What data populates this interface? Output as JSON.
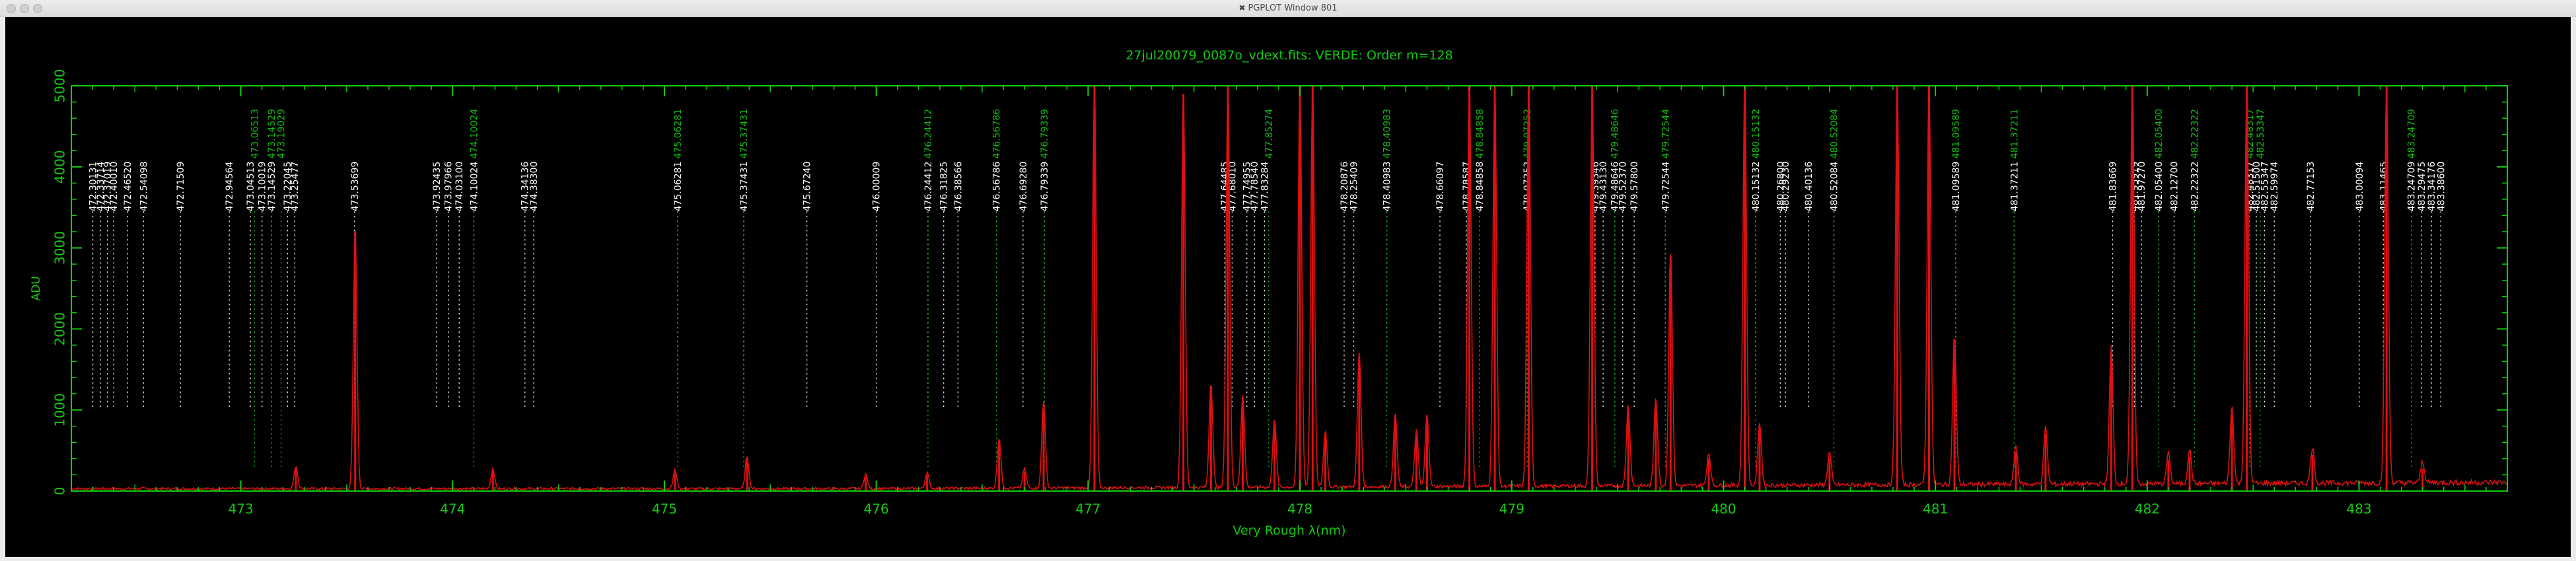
{
  "window": {
    "title": "PGPLOT Window 801",
    "icon": "x11-icon"
  },
  "colors": {
    "plot_green": "#11bb11",
    "spectrum_red": "#dd1111",
    "axis_green": "#11cc11",
    "background": "#000000",
    "label_white": "#ffffff"
  },
  "chart_data": {
    "type": "line",
    "title": "27jul20079_0087o_vdext.fits: VERDE: Order m=128",
    "xlabel": "Very Rough λ(nm)",
    "ylabel": "ADU",
    "xlim": [
      472.2,
      483.7
    ],
    "ylim": [
      0,
      5000
    ],
    "xticks": [
      473,
      474,
      475,
      476,
      477,
      478,
      479,
      480,
      481,
      482,
      483
    ],
    "yticks": [
      0,
      1000,
      2000,
      3000,
      4000,
      5000
    ],
    "grid": false,
    "series": [
      {
        "peaks": [
          [
            473.26,
            280
          ],
          [
            473.54,
            3200
          ],
          [
            474.19,
            250
          ],
          [
            475.05,
            230
          ],
          [
            475.39,
            400
          ],
          [
            475.95,
            180
          ],
          [
            476.24,
            200
          ],
          [
            476.58,
            620
          ],
          [
            476.7,
            240
          ],
          [
            476.79,
            1080
          ],
          [
            477.03,
            5000
          ],
          [
            477.45,
            4900
          ],
          [
            477.58,
            1300
          ],
          [
            477.66,
            5000
          ],
          [
            477.73,
            1150
          ],
          [
            477.88,
            850
          ],
          [
            478.0,
            5000
          ],
          [
            478.06,
            5000
          ],
          [
            478.12,
            700
          ],
          [
            478.28,
            1650
          ],
          [
            478.45,
            900
          ],
          [
            478.55,
            700
          ],
          [
            478.6,
            900
          ],
          [
            478.8,
            5000
          ],
          [
            478.92,
            5000
          ],
          [
            479.08,
            5000
          ],
          [
            479.38,
            5000
          ],
          [
            479.55,
            1000
          ],
          [
            479.68,
            1100
          ],
          [
            479.75,
            2900
          ],
          [
            479.93,
            400
          ],
          [
            480.1,
            5000
          ],
          [
            480.17,
            780
          ],
          [
            480.5,
            400
          ],
          [
            480.82,
            5000
          ],
          [
            480.97,
            5000
          ],
          [
            481.09,
            1850
          ],
          [
            481.38,
            480
          ],
          [
            481.52,
            700
          ],
          [
            481.83,
            1700
          ],
          [
            481.93,
            5000
          ],
          [
            482.1,
            380
          ],
          [
            482.2,
            420
          ],
          [
            482.4,
            950
          ],
          [
            482.47,
            5000
          ],
          [
            482.78,
            450
          ],
          [
            483.13,
            5000
          ],
          [
            483.3,
            270
          ]
        ]
      }
    ],
    "line_markers_white": [
      {
        "x": 472.30131,
        "label": "472.30131"
      },
      {
        "x": 472.33714,
        "label": "472.33714"
      },
      {
        "x": 472.37019,
        "label": "472.37019"
      },
      {
        "x": 472.4001,
        "label": "472.40010"
      },
      {
        "x": 472.4652,
        "label": "472.46520"
      },
      {
        "x": 472.54098,
        "label": "472.54098"
      },
      {
        "x": 472.71509,
        "label": "472.71509"
      },
      {
        "x": 472.94564,
        "label": "472.94564"
      },
      {
        "x": 473.04513,
        "label": "473.04513"
      },
      {
        "x": 473.10019,
        "label": "473.10019"
      },
      {
        "x": 473.14529,
        "label": "473.14529"
      },
      {
        "x": 473.22045,
        "label": "473.22045"
      },
      {
        "x": 473.25477,
        "label": "473.25477"
      },
      {
        "x": 473.53699,
        "label": "473.53699"
      },
      {
        "x": 473.92435,
        "label": "473.92435"
      },
      {
        "x": 473.97966,
        "label": "473.97966"
      },
      {
        "x": 474.031,
        "label": "474.03100"
      },
      {
        "x": 474.10024,
        "label": "474.10024"
      },
      {
        "x": 474.34136,
        "label": "474.34136"
      },
      {
        "x": 474.383,
        "label": "474.38300"
      },
      {
        "x": 475.06281,
        "label": "475.06281"
      },
      {
        "x": 475.37431,
        "label": "475.37431"
      },
      {
        "x": 475.6724,
        "label": "475.67240"
      },
      {
        "x": 476.00009,
        "label": "476.00009"
      },
      {
        "x": 476.24412,
        "label": "476.24412"
      },
      {
        "x": 476.31825,
        "label": "476.31825"
      },
      {
        "x": 476.38566,
        "label": "476.38566"
      },
      {
        "x": 476.56786,
        "label": "476.56786"
      },
      {
        "x": 476.6928,
        "label": "476.69280"
      },
      {
        "x": 476.79339,
        "label": "476.79339"
      },
      {
        "x": 477.64485,
        "label": "477.64485"
      },
      {
        "x": 477.6801,
        "label": "477.68010"
      },
      {
        "x": 477.74955,
        "label": "477.74955"
      },
      {
        "x": 477.7854,
        "label": "477.78540"
      },
      {
        "x": 477.83284,
        "label": "477.83284"
      },
      {
        "x": 478.20876,
        "label": "478.20876"
      },
      {
        "x": 478.25409,
        "label": "478.25409"
      },
      {
        "x": 478.40983,
        "label": "478.40983"
      },
      {
        "x": 478.66097,
        "label": "478.66097"
      },
      {
        "x": 478.78587,
        "label": "478.78587"
      },
      {
        "x": 478.84858,
        "label": "478.84858"
      },
      {
        "x": 479.07252,
        "label": "479.07252"
      },
      {
        "x": 479.39346,
        "label": "479.39346"
      },
      {
        "x": 479.4313,
        "label": "479.43130"
      },
      {
        "x": 479.48646,
        "label": "479.48646"
      },
      {
        "x": 479.5237,
        "label": "479.52370"
      },
      {
        "x": 479.578,
        "label": "479.57800"
      },
      {
        "x": 479.72544,
        "label": "479.72544"
      },
      {
        "x": 480.15132,
        "label": "480.15132"
      },
      {
        "x": 480.268,
        "label": "480.26800"
      },
      {
        "x": 480.2923,
        "label": "480.29230"
      },
      {
        "x": 480.40136,
        "label": "480.40136"
      },
      {
        "x": 480.52084,
        "label": "480.52084"
      },
      {
        "x": 481.09589,
        "label": "481.09589"
      },
      {
        "x": 481.37211,
        "label": "481.37211"
      },
      {
        "x": 481.83669,
        "label": "481.83669"
      },
      {
        "x": 481.93919,
        "label": "481.93919"
      },
      {
        "x": 481.9727,
        "label": "481.97270"
      },
      {
        "x": 482.054,
        "label": "482.05400"
      },
      {
        "x": 482.127,
        "label": "482.12700"
      },
      {
        "x": 482.22322,
        "label": "482.22322"
      },
      {
        "x": 482.48317,
        "label": "482.48317"
      },
      {
        "x": 482.515,
        "label": "482.51500"
      },
      {
        "x": 482.55347,
        "label": "482.55347"
      },
      {
        "x": 482.59974,
        "label": "482.59974"
      },
      {
        "x": 482.77153,
        "label": "482.77153"
      },
      {
        "x": 483.00094,
        "label": "483.00094"
      },
      {
        "x": 483.11465,
        "label": "483.11465"
      },
      {
        "x": 483.24709,
        "label": "483.24709"
      },
      {
        "x": 483.29475,
        "label": "483.29475"
      },
      {
        "x": 483.34176,
        "label": "483.34176"
      },
      {
        "x": 483.386,
        "label": "483.38600"
      }
    ],
    "line_markers_green": [
      {
        "x": 473.06513,
        "label": "473.06513"
      },
      {
        "x": 473.14529,
        "label": "473.14529"
      },
      {
        "x": 473.19029,
        "label": "473.19029"
      },
      {
        "x": 474.10024,
        "label": "474.10024"
      },
      {
        "x": 475.06281,
        "label": "475.06281"
      },
      {
        "x": 475.37431,
        "label": "475.37431"
      },
      {
        "x": 476.24412,
        "label": "476.24412"
      },
      {
        "x": 476.56786,
        "label": "476.56786"
      },
      {
        "x": 476.79339,
        "label": "476.79339"
      },
      {
        "x": 477.85274,
        "label": "477.85274"
      },
      {
        "x": 478.40983,
        "label": "478.40983"
      },
      {
        "x": 478.84858,
        "label": "478.84858"
      },
      {
        "x": 479.07252,
        "label": "479.07252"
      },
      {
        "x": 479.48646,
        "label": "479.48646"
      },
      {
        "x": 479.72544,
        "label": "479.72544"
      },
      {
        "x": 480.15132,
        "label": "480.15132"
      },
      {
        "x": 480.52084,
        "label": "480.52084"
      },
      {
        "x": 481.09589,
        "label": "481.09589"
      },
      {
        "x": 481.37211,
        "label": "481.37211"
      },
      {
        "x": 482.054,
        "label": "482.05400"
      },
      {
        "x": 482.22322,
        "label": "482.22322"
      },
      {
        "x": 482.48317,
        "label": "482.48317"
      },
      {
        "x": 482.53347,
        "label": "482.53347"
      },
      {
        "x": 483.24709,
        "label": "483.24709"
      }
    ]
  }
}
